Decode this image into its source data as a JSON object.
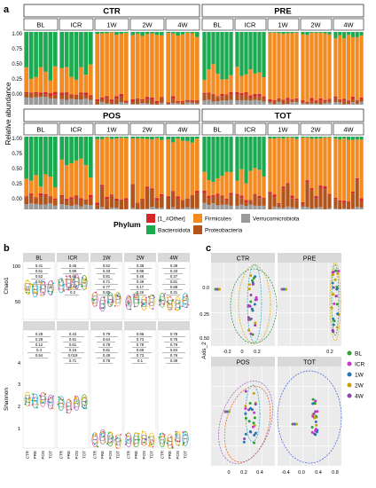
{
  "panels": {
    "a": "a",
    "b": "b",
    "c": "c"
  },
  "panel_a": {
    "y_axis_label": "Relative abundance",
    "y_ticks": [
      "0.00",
      "0.25",
      "0.50",
      "0.75",
      "1.00"
    ],
    "group_labels": [
      "CTR",
      "PRE",
      "POS",
      "TOT"
    ],
    "time_labels": [
      "BL",
      "ICR",
      "1W",
      "2W",
      "4W"
    ],
    "legend_title": "Phylum",
    "legend_items": [
      {
        "label": "[1_#Other]",
        "color": "#d62728"
      },
      {
        "label": "Bacteroidota",
        "color": "#1aab50"
      },
      {
        "label": "Firmicutes",
        "color": "#f58a1f"
      },
      {
        "label": "Proteobacteria",
        "color": "#b5541a"
      },
      {
        "label": "Verrucomicrobiota",
        "color": "#9a9a9a"
      }
    ]
  },
  "panel_b": {
    "facet_labels": [
      "BL",
      "ICR",
      "1W",
      "2W",
      "4W"
    ],
    "row_labels": [
      "Chao1",
      "Shannon"
    ],
    "chao1_ticks": [
      "100",
      "50"
    ],
    "shannon_ticks": [
      "4",
      "3",
      "2",
      "1"
    ],
    "x_labels": [
      "CTR",
      "PRE",
      "POS",
      "TOT"
    ],
    "pvalues": {
      "chao1": [
        [
          "0.41",
          "0.51",
          "0.52",
          "0.52"
        ],
        [
          "0.45",
          "0.99",
          "0.66",
          "0.64",
          "0.74",
          "0.2"
        ],
        [
          "0.52",
          "0.33",
          "0.81",
          "0.71",
          "0.77",
          "0.85"
        ],
        [
          "0.38",
          "0.88",
          "0.46",
          "0.49",
          "0.17",
          "0.26"
        ],
        [
          "0.38",
          "0.33",
          "0.37",
          "0.81",
          "0.88",
          "0.31"
        ]
      ],
      "shannon": [
        [
          "0.28",
          "0.28",
          "0.12",
          "0.4",
          "0.94"
        ],
        [
          "0.43",
          "0.91",
          "0.61",
          "0.16",
          "0.019",
          "0.71"
        ],
        [
          "0.79",
          "0.64",
          "0.78",
          "0.81",
          "0.49",
          "0.78"
        ],
        [
          "0.96",
          "0.73",
          "0.78",
          "0.66",
          "0.73",
          "0.1"
        ],
        [
          "0.78",
          "0.75",
          "0.79",
          "0.84",
          "0.76",
          "0.39"
        ]
      ]
    },
    "point_colors": [
      "#e7b800",
      "#00a6c7",
      "#e75480",
      "#9b59b6",
      "#2ca02c",
      "#f39c12"
    ]
  },
  "panel_c": {
    "facet_labels": [
      "CTR",
      "PRE",
      "POS",
      "TOT"
    ],
    "y_axis_label": "Axis_2",
    "y_ticks": [
      "0.0",
      "0.25",
      "0.50"
    ],
    "x_ticks_pos": [
      "0",
      "0.2",
      "0.4"
    ],
    "x_ticks_tot": [
      "-0.4",
      "0.0",
      "0.4",
      "0.8"
    ],
    "x_ticks_top_left": [
      "-0.2",
      "0",
      "0.2"
    ],
    "x_ticks_top_right": [
      "0.2"
    ],
    "legend": [
      {
        "label": "BL",
        "color": "#2ca02c"
      },
      {
        "label": "ICR",
        "color": "#cc33cc"
      },
      {
        "label": "1W",
        "color": "#1f77b4"
      },
      {
        "label": "2W",
        "color": "#c8a000"
      },
      {
        "label": "4W",
        "color": "#8e44ad"
      }
    ],
    "ellipse_colors": [
      "#2b8a3e",
      "#d9a400",
      "#9b59b6",
      "#1aa3c7",
      "#e8590c",
      "#3b5bdb"
    ]
  }
}
